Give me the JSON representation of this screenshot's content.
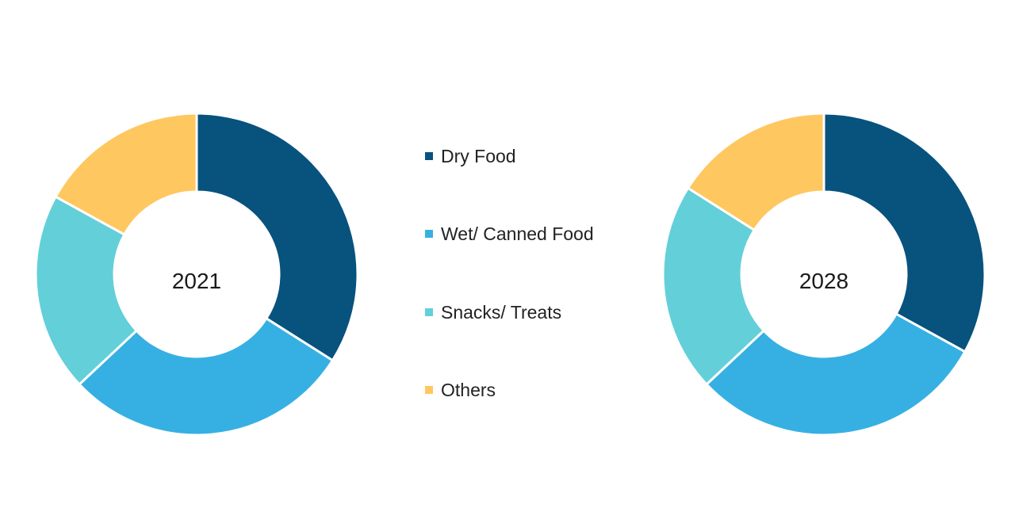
{
  "chart_data": [
    {
      "type": "pie",
      "variant": "donut",
      "center_label": "2021",
      "categories": [
        "Dry Food",
        "Wet/ Canned Food",
        "Snacks/ Treats",
        "Others"
      ],
      "values": [
        34,
        29,
        20,
        17
      ],
      "colors": [
        "#08527E",
        "#36B0E3",
        "#63CFD9",
        "#FFC75F"
      ]
    },
    {
      "type": "pie",
      "variant": "donut",
      "center_label": "2028",
      "categories": [
        "Dry Food",
        "Wet/ Canned Food",
        "Snacks/ Treats",
        "Others"
      ],
      "values": [
        33,
        30,
        21,
        16
      ],
      "colors": [
        "#08527E",
        "#36B0E3",
        "#63CFD9",
        "#FFC75F"
      ]
    }
  ],
  "legend": {
    "placement": "center",
    "items": [
      {
        "label": "Dry Food",
        "color": "#08527E"
      },
      {
        "label": "Wet/ Canned Food",
        "color": "#36B0E3"
      },
      {
        "label": "Snacks/ Treats",
        "color": "#63CFD9"
      },
      {
        "label": "Others",
        "color": "#FFC75F"
      }
    ]
  }
}
